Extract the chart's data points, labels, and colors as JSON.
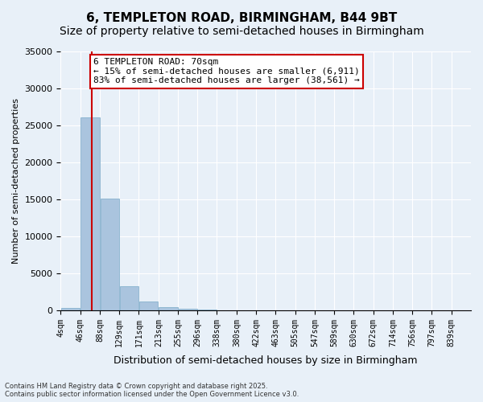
{
  "title_line1": "6, TEMPLETON ROAD, BIRMINGHAM, B44 9BT",
  "title_line2": "Size of property relative to semi-detached houses in Birmingham",
  "xlabel": "Distribution of semi-detached houses by size in Birmingham",
  "ylabel": "Number of semi-detached properties",
  "bin_labels": [
    "4sqm",
    "46sqm",
    "88sqm",
    "129sqm",
    "171sqm",
    "213sqm",
    "255sqm",
    "296sqm",
    "338sqm",
    "380sqm",
    "422sqm",
    "463sqm",
    "505sqm",
    "547sqm",
    "589sqm",
    "630sqm",
    "672sqm",
    "714sqm",
    "756sqm",
    "797sqm",
    "839sqm"
  ],
  "bin_edges": [
    4,
    46,
    88,
    129,
    171,
    213,
    255,
    296,
    338,
    380,
    422,
    463,
    505,
    547,
    589,
    630,
    672,
    714,
    756,
    797,
    839
  ],
  "bar_heights": [
    370,
    26100,
    15100,
    3200,
    1150,
    430,
    200,
    100,
    0,
    0,
    0,
    0,
    0,
    0,
    0,
    0,
    0,
    0,
    0,
    0
  ],
  "bar_color": "#aac4de",
  "bar_edgecolor": "#7aaac8",
  "property_size": 70,
  "property_label": "6 TEMPLETON ROAD: 70sqm",
  "pct_smaller": 15,
  "pct_smaller_count": 6911,
  "pct_larger": 83,
  "pct_larger_count": 38561,
  "vline_color": "#cc0000",
  "box_edgecolor": "#cc0000",
  "ylim": [
    0,
    35000
  ],
  "yticks": [
    0,
    5000,
    10000,
    15000,
    20000,
    25000,
    30000,
    35000
  ],
  "bg_color": "#e8f0f8",
  "plot_bg_color": "#e8f0f8",
  "footer_line1": "Contains HM Land Registry data © Crown copyright and database right 2025.",
  "footer_line2": "Contains public sector information licensed under the Open Government Licence v3.0.",
  "annotation_fontsize": 8,
  "title1_fontsize": 11,
  "title2_fontsize": 10
}
